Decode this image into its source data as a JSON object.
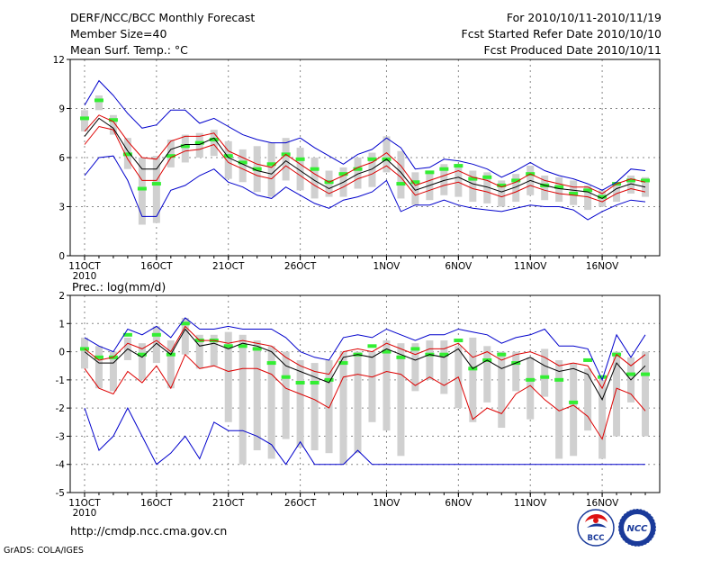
{
  "header": {
    "title": "DERF/NCC/BCC Monthly Forecast",
    "member_size": "Member Size=40",
    "variable1": "Mean Surf. Temp.: °C",
    "period": "For 2010/10/11-2010/11/19",
    "started": "Fcst Started Refer Date 2010/10/10",
    "produced": "Fcst Produced Date 2010/10/11"
  },
  "footer": {
    "url": "http://cmdp.ncc.cma.gov.cn",
    "credit": "GrADS: COLA/IGES",
    "logo_bcc": "BCC",
    "logo_ncc": "NCC"
  },
  "colors": {
    "mean": "#000000",
    "spread": "#dd0000",
    "extreme": "#0000cc",
    "box": "#d0d0d0",
    "clim": "#33ee33"
  },
  "chart_data": [
    {
      "type": "line",
      "title": "Mean Surf. Temp.: °C",
      "x": [
        1,
        2,
        3,
        4,
        5,
        6,
        7,
        8,
        9,
        10,
        11,
        12,
        13,
        14,
        15,
        16,
        17,
        18,
        19,
        20,
        21,
        22,
        23,
        24,
        25,
        26,
        27,
        28,
        29,
        30,
        31,
        32,
        33,
        34,
        35,
        36,
        37,
        38,
        39,
        40
      ],
      "xlim": [
        0,
        41
      ],
      "ylim": [
        0,
        12
      ],
      "yticks": [
        0,
        3,
        6,
        9,
        12
      ],
      "xticks": [
        {
          "x": 1,
          "label": "11OCT"
        },
        {
          "x": 6,
          "label": "16OCT"
        },
        {
          "x": 11,
          "label": "21OCT"
        },
        {
          "x": 16,
          "label": "26OCT"
        },
        {
          "x": 22,
          "label": "1NOV"
        },
        {
          "x": 27,
          "label": "6NOV"
        },
        {
          "x": 32,
          "label": "11NOV"
        },
        {
          "x": 37,
          "label": "16NOV"
        }
      ],
      "year_label": "2010",
      "series": [
        {
          "name": "ensemble max",
          "color": "#0000cc",
          "values": [
            9.2,
            10.7,
            9.8,
            8.7,
            7.8,
            8.0,
            8.9,
            8.9,
            8.1,
            8.4,
            7.9,
            7.4,
            7.1,
            6.9,
            6.9,
            7.2,
            6.6,
            6.1,
            5.6,
            6.2,
            6.5,
            7.2,
            6.6,
            5.3,
            5.4,
            5.9,
            5.8,
            5.6,
            5.3,
            4.8,
            5.2,
            5.7,
            5.2,
            4.9,
            4.7,
            4.4,
            4.0,
            4.5,
            5.3,
            5.2
          ]
        },
        {
          "name": "mean + spread",
          "color": "#dd0000",
          "values": [
            7.6,
            8.6,
            8.2,
            7.0,
            6.0,
            5.9,
            7.0,
            7.3,
            7.3,
            7.5,
            6.4,
            6.0,
            5.6,
            5.4,
            6.2,
            5.6,
            5.0,
            4.5,
            4.9,
            5.4,
            5.7,
            6.3,
            5.5,
            4.3,
            4.6,
            4.9,
            5.2,
            4.8,
            4.6,
            4.2,
            4.5,
            5.0,
            4.6,
            4.4,
            4.2,
            4.2,
            3.8,
            4.4,
            4.7,
            4.5
          ]
        },
        {
          "name": "ensemble mean",
          "color": "#000000",
          "values": [
            7.3,
            8.4,
            7.8,
            6.4,
            5.3,
            5.3,
            6.5,
            6.8,
            6.8,
            7.2,
            6.0,
            5.6,
            5.2,
            5.0,
            5.8,
            5.2,
            4.6,
            4.1,
            4.5,
            5.0,
            5.3,
            5.9,
            5.1,
            4.0,
            4.3,
            4.6,
            4.8,
            4.4,
            4.2,
            3.9,
            4.2,
            4.6,
            4.3,
            4.1,
            4.0,
            3.9,
            3.5,
            4.1,
            4.4,
            4.2
          ]
        },
        {
          "name": "mean - spread",
          "color": "#dd0000",
          "values": [
            6.8,
            7.9,
            7.7,
            5.9,
            4.6,
            4.6,
            6.0,
            6.4,
            6.5,
            6.8,
            5.7,
            5.3,
            4.9,
            4.7,
            5.5,
            4.9,
            4.3,
            3.8,
            4.2,
            4.7,
            5.0,
            5.5,
            4.8,
            3.7,
            4.0,
            4.3,
            4.5,
            4.1,
            3.9,
            3.6,
            3.9,
            4.3,
            4.0,
            3.8,
            3.7,
            3.6,
            3.3,
            3.8,
            4.1,
            3.9
          ]
        },
        {
          "name": "ensemble min",
          "color": "#0000cc",
          "values": [
            4.9,
            6.0,
            6.1,
            4.6,
            2.4,
            2.4,
            4.0,
            4.3,
            4.9,
            5.3,
            4.5,
            4.2,
            3.7,
            3.5,
            4.2,
            3.7,
            3.2,
            2.9,
            3.4,
            3.6,
            3.9,
            4.6,
            2.7,
            3.1,
            3.1,
            3.4,
            3.1,
            2.9,
            2.8,
            2.7,
            2.9,
            3.1,
            3.0,
            3.0,
            2.8,
            2.2,
            2.7,
            3.1,
            3.4,
            3.3
          ]
        }
      ],
      "boxes": {
        "color": "#d0d0d0",
        "low": [
          7.6,
          8.9,
          7.4,
          5.3,
          1.9,
          2.0,
          5.4,
          5.7,
          6.0,
          6.1,
          4.7,
          4.5,
          3.9,
          3.6,
          4.6,
          4.0,
          3.5,
          3.6,
          3.6,
          4.1,
          4.2,
          5.1,
          3.5,
          3.1,
          3.4,
          3.7,
          3.6,
          3.3,
          3.2,
          3.0,
          3.3,
          3.7,
          3.4,
          3.3,
          3.1,
          2.8,
          3.0,
          3.3,
          3.8,
          3.6
        ],
        "high": [
          8.9,
          9.8,
          8.6,
          7.2,
          6.0,
          6.1,
          7.1,
          7.4,
          7.5,
          7.7,
          7.0,
          6.5,
          6.7,
          6.9,
          7.2,
          6.6,
          6.0,
          5.2,
          5.4,
          6.0,
          6.3,
          7.3,
          6.4,
          5.1,
          5.2,
          5.6,
          5.6,
          5.2,
          5.1,
          4.6,
          5.0,
          5.5,
          4.9,
          4.8,
          4.6,
          4.3,
          4.0,
          4.5,
          4.9,
          4.8
        ]
      },
      "climatology": {
        "color": "#33ee33",
        "values": [
          8.4,
          9.5,
          8.3,
          6.2,
          4.1,
          4.4,
          6.1,
          6.7,
          6.9,
          7.1,
          6.1,
          5.7,
          5.3,
          5.6,
          6.2,
          5.9,
          5.3,
          4.5,
          5.0,
          5.3,
          5.9,
          5.9,
          4.4,
          4.5,
          5.1,
          5.3,
          5.5,
          4.7,
          4.8,
          4.3,
          4.6,
          5.0,
          4.3,
          4.2,
          3.8,
          4.0,
          3.6,
          4.4,
          4.6,
          4.6
        ]
      }
    },
    {
      "type": "line",
      "title": "Prec.: log(mm/d)",
      "x": [
        1,
        2,
        3,
        4,
        5,
        6,
        7,
        8,
        9,
        10,
        11,
        12,
        13,
        14,
        15,
        16,
        17,
        18,
        19,
        20,
        21,
        22,
        23,
        24,
        25,
        26,
        27,
        28,
        29,
        30,
        31,
        32,
        33,
        34,
        35,
        36,
        37,
        38,
        39,
        40
      ],
      "xlim": [
        0,
        41
      ],
      "ylim": [
        -5,
        2
      ],
      "yticks": [
        -5,
        -4,
        -3,
        -2,
        -1,
        0,
        1,
        2
      ],
      "xticks": [
        {
          "x": 1,
          "label": "11OCT"
        },
        {
          "x": 6,
          "label": "16OCT"
        },
        {
          "x": 11,
          "label": "21OCT"
        },
        {
          "x": 16,
          "label": "26OCT"
        },
        {
          "x": 22,
          "label": "1NOV"
        },
        {
          "x": 27,
          "label": "6NOV"
        },
        {
          "x": 32,
          "label": "11NOV"
        },
        {
          "x": 37,
          "label": "16NOV"
        }
      ],
      "year_label": "2010",
      "series": [
        {
          "name": "ensemble max",
          "color": "#0000cc",
          "values": [
            0.5,
            0.2,
            0.0,
            0.8,
            0.6,
            0.9,
            0.5,
            1.2,
            0.8,
            0.8,
            0.9,
            0.8,
            0.8,
            0.8,
            0.5,
            0.0,
            -0.2,
            -0.3,
            0.5,
            0.6,
            0.5,
            0.8,
            0.6,
            0.4,
            0.6,
            0.6,
            0.8,
            0.7,
            0.6,
            0.3,
            0.5,
            0.6,
            0.8,
            0.2,
            0.2,
            0.1,
            -1.0,
            0.6,
            -0.2,
            0.6
          ]
        },
        {
          "name": "mean + spread",
          "color": "#dd0000",
          "values": [
            0.1,
            -0.3,
            -0.2,
            0.3,
            0.1,
            0.4,
            0.0,
            0.9,
            0.4,
            0.4,
            0.3,
            0.4,
            0.3,
            0.2,
            -0.2,
            -0.5,
            -0.7,
            -0.8,
            0.0,
            0.1,
            0.0,
            0.3,
            0.1,
            -0.1,
            0.1,
            0.1,
            0.3,
            -0.2,
            0.0,
            -0.3,
            -0.1,
            0.0,
            -0.2,
            -0.5,
            -0.4,
            -0.5,
            -1.3,
            -0.1,
            -0.5,
            -0.1
          ]
        },
        {
          "name": "ensemble mean",
          "color": "#000000",
          "values": [
            0.0,
            -0.4,
            -0.4,
            0.1,
            -0.2,
            0.3,
            -0.1,
            0.8,
            0.2,
            0.3,
            0.1,
            0.3,
            0.2,
            0.0,
            -0.5,
            -0.7,
            -0.9,
            -1.1,
            -0.2,
            -0.1,
            -0.2,
            0.1,
            -0.1,
            -0.3,
            -0.1,
            -0.2,
            0.1,
            -0.6,
            -0.3,
            -0.6,
            -0.4,
            -0.2,
            -0.5,
            -0.7,
            -0.6,
            -0.8,
            -1.7,
            -0.4,
            -1.0,
            -0.5
          ]
        },
        {
          "name": "mean - spread",
          "color": "#dd0000",
          "values": [
            -0.6,
            -1.3,
            -1.5,
            -0.7,
            -1.1,
            -0.5,
            -1.3,
            -0.1,
            -0.6,
            -0.5,
            -0.7,
            -0.6,
            -0.6,
            -0.8,
            -1.3,
            -1.5,
            -1.7,
            -2.0,
            -0.9,
            -0.8,
            -0.9,
            -0.7,
            -0.8,
            -1.2,
            -0.9,
            -1.2,
            -0.9,
            -2.4,
            -2.0,
            -2.2,
            -1.5,
            -1.2,
            -1.7,
            -2.1,
            -1.9,
            -2.3,
            -3.1,
            -1.3,
            -1.5,
            -2.1
          ]
        },
        {
          "name": "ensemble min",
          "color": "#0000cc",
          "values": [
            -2.0,
            -3.5,
            -3.0,
            -2.0,
            -3.0,
            -4.0,
            -3.6,
            -3.0,
            -3.8,
            -2.5,
            -2.8,
            -2.8,
            -3.0,
            -3.3,
            -4.0,
            -3.2,
            -4.0,
            -4.0,
            -4.0,
            -3.5,
            -4.0,
            -4.0,
            -4.0,
            -4.0,
            -4.0,
            -4.0,
            -4.0,
            -4.0,
            -4.0,
            -4.0,
            -4.0,
            -4.0,
            -4.0,
            -4.0,
            -4.0,
            -4.0,
            -4.0,
            -4.0,
            -4.0,
            -4.0
          ]
        }
      ],
      "boxes": {
        "color": "#d0d0d0",
        "low": [
          -0.6,
          -1.3,
          -1.4,
          -0.3,
          -1.0,
          -0.4,
          -1.3,
          -0.1,
          -0.6,
          -0.5,
          -2.5,
          -4.0,
          -3.5,
          -3.8,
          -3.1,
          -3.4,
          -3.5,
          -3.6,
          -4.0,
          -3.6,
          -2.5,
          -2.8,
          -3.7,
          -1.4,
          -1.0,
          -1.5,
          -2.0,
          -2.5,
          -1.8,
          -2.7,
          -1.4,
          -2.4,
          -1.6,
          -3.8,
          -3.7,
          -2.8,
          -3.8,
          -3.0,
          -1.8,
          -3.0
        ],
        "high": [
          0.5,
          0.2,
          0.0,
          0.5,
          0.3,
          0.9,
          0.4,
          1.2,
          0.6,
          0.6,
          0.7,
          0.6,
          0.4,
          0.2,
          0.0,
          -0.3,
          -0.4,
          -0.3,
          0.0,
          0.0,
          0.0,
          0.4,
          0.3,
          0.3,
          0.4,
          0.4,
          0.2,
          0.5,
          0.2,
          0.0,
          0.0,
          -0.2,
          0.1,
          -0.3,
          -0.4,
          -0.6,
          -1.0,
          0.0,
          -0.2,
          0.0
        ]
      },
      "climatology": {
        "color": "#33ee33",
        "values": [
          0.1,
          -0.2,
          -0.2,
          0.6,
          -0.1,
          0.6,
          -0.1,
          1.0,
          0.4,
          0.4,
          0.2,
          0.2,
          0.1,
          -0.4,
          -0.9,
          -1.1,
          -1.1,
          -1.0,
          -0.4,
          -0.1,
          0.2,
          0.0,
          -0.2,
          0.1,
          -0.1,
          -0.1,
          0.4,
          -0.6,
          -0.3,
          -0.1,
          -0.4,
          -1.0,
          -0.9,
          -1.0,
          -1.8,
          -0.3,
          -0.9,
          -0.1,
          -0.8,
          -0.8
        ]
      }
    }
  ]
}
